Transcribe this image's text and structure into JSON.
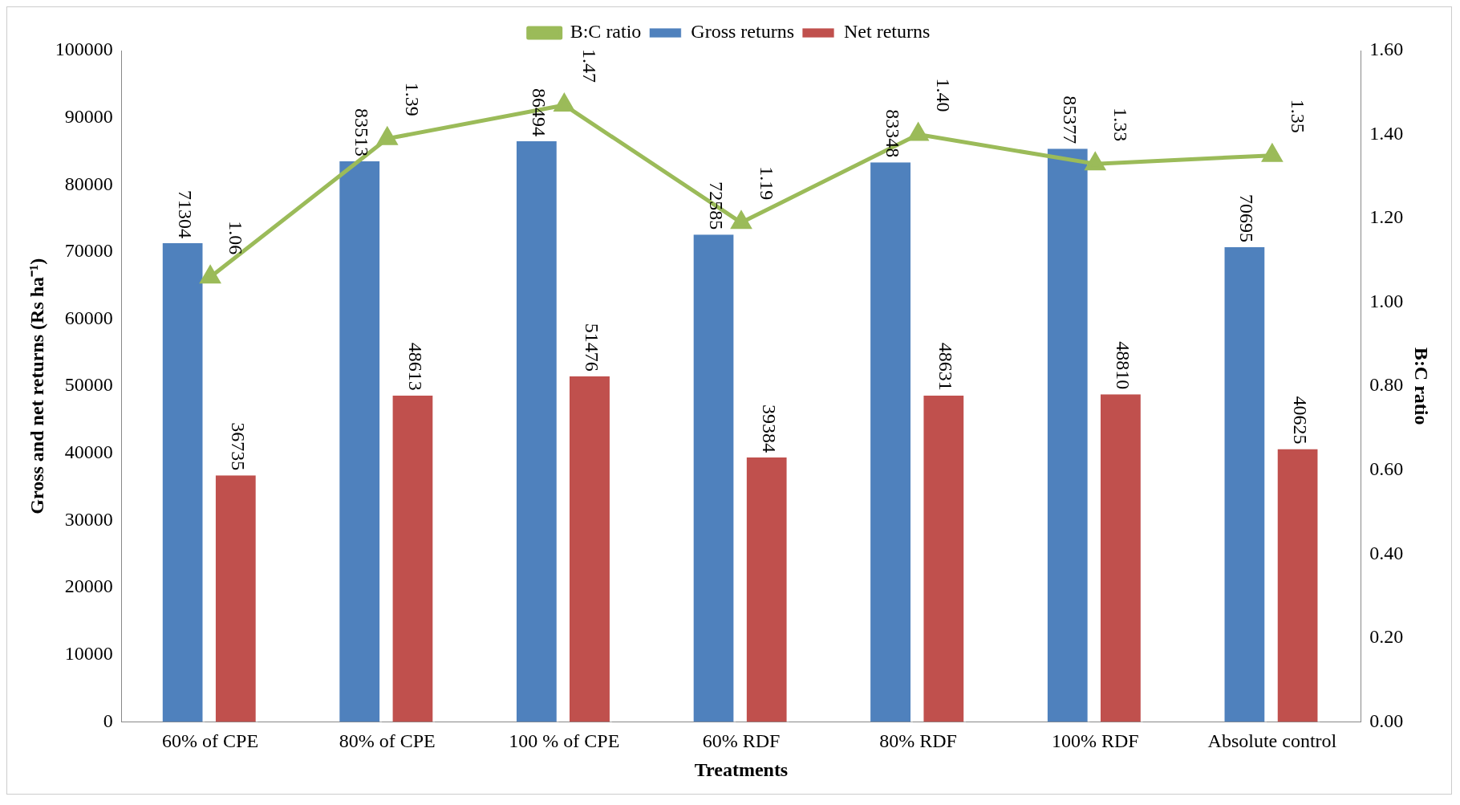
{
  "chart_data": {
    "type": "bar",
    "xlabel": "Treatments",
    "ylabel": "Gross and net returns (Rs ha⁻¹)",
    "y2label": "B:C ratio",
    "categories": [
      "60% of CPE",
      "80% of CPE",
      "100 % of CPE",
      "60% RDF",
      "80% RDF",
      "100% RDF",
      "Absolute control"
    ],
    "series": [
      {
        "name": "Gross returns",
        "color": "#4f81bd",
        "values": [
          71304,
          83513,
          86494,
          72585,
          83348,
          85377,
          70695
        ],
        "value_labels": [
          "71304",
          "83513",
          "86494",
          "72585",
          "83348",
          "85377",
          "70695"
        ]
      },
      {
        "name": "Net returns",
        "color": "#c0504d",
        "values": [
          36735,
          48613,
          51476,
          39384,
          48631,
          48810,
          40625
        ],
        "value_labels": [
          "36735",
          "48613",
          "51476",
          "39384",
          "48631",
          "48810",
          "40625"
        ]
      },
      {
        "name": "B:C ratio",
        "type": "line",
        "axis": "y2",
        "color": "#9bbb59",
        "marker": "triangle",
        "values": [
          1.06,
          1.39,
          1.47,
          1.19,
          1.4,
          1.33,
          1.35
        ],
        "value_labels": [
          "1.06",
          "1.39",
          "1.47",
          "1.19",
          "1.40",
          "1.33",
          "1.35"
        ]
      }
    ],
    "ylim": [
      0,
      100000
    ],
    "yticks": [
      0,
      10000,
      20000,
      30000,
      40000,
      50000,
      60000,
      70000,
      80000,
      90000,
      100000
    ],
    "y2lim": [
      0,
      1.6
    ],
    "y2ticks": [
      {
        "value": 0,
        "label": "0.00"
      },
      {
        "value": 0.2,
        "label": "0.20"
      },
      {
        "value": 0.4,
        "label": "0.40"
      },
      {
        "value": 0.6,
        "label": "0.60"
      },
      {
        "value": 0.8,
        "label": "0.80"
      },
      {
        "value": 1,
        "label": "1.00"
      },
      {
        "value": 1.2,
        "label": "1.20"
      },
      {
        "value": 1.4,
        "label": "1.40"
      },
      {
        "value": 1.6,
        "label": "1.60"
      }
    ],
    "grid": false,
    "legend": "top"
  }
}
